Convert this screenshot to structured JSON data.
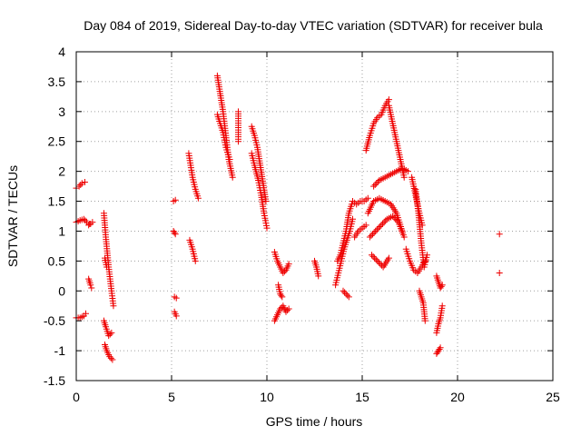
{
  "chart_data": {
    "type": "scatter",
    "title": "Day 084 of 2019, Sidereal Day-to-day VTEC variation (SDTVAR) for receiver bula",
    "xlabel": "GPS time / hours",
    "ylabel": "SDTVAR / TECUs",
    "xlim": [
      0,
      25
    ],
    "ylim": [
      -1.5,
      4
    ],
    "xticks": [
      "0",
      "5",
      "10",
      "15",
      "20",
      "25"
    ],
    "yticks": [
      "-1.5",
      "-1",
      "-0.5",
      "0",
      "0.5",
      "1",
      "1.5",
      "2",
      "2.5",
      "3",
      "3.5",
      "4"
    ],
    "grid": true,
    "marker": "+",
    "color": "#ee0000",
    "tracks": [
      {
        "x": [
          0.0,
          0.15,
          0.3,
          0.45
        ],
        "y": [
          1.72,
          1.75,
          1.8,
          1.82
        ]
      },
      {
        "x": [
          0.0,
          0.2,
          0.4,
          0.55,
          0.7
        ],
        "y": [
          1.15,
          1.18,
          1.2,
          1.15,
          1.12
        ]
      },
      {
        "x": [
          0.0,
          0.2,
          0.4,
          0.5
        ],
        "y": [
          -0.45,
          -0.45,
          -0.42,
          -0.38
        ]
      },
      {
        "x": [
          0.65,
          0.75,
          0.85
        ],
        "y": [
          1.1,
          1.12,
          1.15
        ]
      },
      {
        "x": [
          0.65,
          0.75,
          0.8
        ],
        "y": [
          0.2,
          0.1,
          0.05
        ]
      },
      {
        "x": [
          1.45,
          1.55,
          1.7,
          1.85,
          1.95
        ],
        "y": [
          1.3,
          0.9,
          0.4,
          0.0,
          -0.25
        ]
      },
      {
        "x": [
          1.45,
          1.55,
          1.7,
          1.85
        ],
        "y": [
          -0.5,
          -0.6,
          -0.75,
          -0.7
        ]
      },
      {
        "x": [
          1.5,
          1.6,
          1.75,
          1.9
        ],
        "y": [
          -0.9,
          -1.0,
          -1.1,
          -1.15
        ]
      },
      {
        "x": [
          1.5,
          1.6
        ],
        "y": [
          0.55,
          0.4
        ]
      },
      {
        "x": [
          5.1,
          5.2
        ],
        "y": [
          1.5,
          1.52
        ]
      },
      {
        "x": [
          5.1,
          5.2
        ],
        "y": [
          1.0,
          0.95
        ]
      },
      {
        "x": [
          5.15,
          5.25
        ],
        "y": [
          -0.1,
          -0.12
        ]
      },
      {
        "x": [
          5.15,
          5.25
        ],
        "y": [
          -0.35,
          -0.42
        ]
      },
      {
        "x": [
          5.9,
          6.0,
          6.1,
          6.25,
          6.4
        ],
        "y": [
          2.3,
          2.1,
          1.9,
          1.7,
          1.55
        ]
      },
      {
        "x": [
          5.95,
          6.1,
          6.25
        ],
        "y": [
          0.85,
          0.7,
          0.5
        ]
      },
      {
        "x": [
          7.4,
          7.55,
          7.7,
          7.85,
          8.0,
          8.2
        ],
        "y": [
          3.6,
          3.3,
          3.0,
          2.6,
          2.2,
          1.9
        ]
      },
      {
        "x": [
          7.4,
          7.55,
          7.7,
          7.85,
          8.05
        ],
        "y": [
          2.95,
          2.8,
          2.65,
          2.4,
          2.2
        ]
      },
      {
        "x": [
          8.5,
          8.5
        ],
        "y": [
          3.0,
          2.5
        ]
      },
      {
        "x": [
          9.2,
          9.35,
          9.5,
          9.65,
          9.8,
          9.95
        ],
        "y": [
          2.75,
          2.6,
          2.4,
          2.1,
          1.8,
          1.5
        ]
      },
      {
        "x": [
          9.2,
          9.35,
          9.55,
          9.7,
          9.85,
          10.0
        ],
        "y": [
          2.3,
          2.1,
          1.85,
          1.6,
          1.3,
          1.05
        ]
      },
      {
        "x": [
          10.4,
          10.55,
          10.7,
          10.85,
          11.0,
          11.15
        ],
        "y": [
          0.65,
          0.5,
          0.4,
          0.3,
          0.35,
          0.45
        ]
      },
      {
        "x": [
          10.4,
          10.55,
          10.7,
          10.85,
          11.0,
          11.15
        ],
        "y": [
          -0.5,
          -0.4,
          -0.3,
          -0.25,
          -0.35,
          -0.3
        ]
      },
      {
        "x": [
          10.6,
          10.7,
          10.8
        ],
        "y": [
          0.1,
          -0.05,
          -0.1
        ]
      },
      {
        "x": [
          12.5,
          12.6,
          12.7
        ],
        "y": [
          0.5,
          0.4,
          0.25
        ]
      },
      {
        "x": [
          13.6,
          13.75,
          13.9,
          14.05,
          14.2,
          14.35,
          14.5
        ],
        "y": [
          0.1,
          0.3,
          0.5,
          0.7,
          0.85,
          1.0,
          1.2
        ]
      },
      {
        "x": [
          13.7,
          13.85,
          14.0,
          14.15,
          14.3,
          14.45
        ],
        "y": [
          0.5,
          0.6,
          0.8,
          1.0,
          1.3,
          1.45
        ]
      },
      {
        "x": [
          14.0,
          14.15,
          14.3
        ],
        "y": [
          0.0,
          -0.05,
          -0.1
        ]
      },
      {
        "x": [
          14.5,
          14.7,
          14.9,
          15.1,
          15.3
        ],
        "y": [
          1.5,
          1.45,
          1.5,
          1.5,
          1.55
        ]
      },
      {
        "x": [
          14.6,
          14.8,
          15.0,
          15.2
        ],
        "y": [
          0.9,
          1.0,
          1.05,
          1.1
        ]
      },
      {
        "x": [
          15.2,
          15.4,
          15.6,
          15.8,
          16.0,
          16.2,
          16.4
        ],
        "y": [
          2.35,
          2.6,
          2.8,
          2.9,
          2.95,
          3.1,
          3.2
        ]
      },
      {
        "x": [
          16.4,
          16.6,
          16.8,
          17.0,
          17.2
        ],
        "y": [
          3.1,
          2.8,
          2.5,
          2.2,
          1.9
        ]
      },
      {
        "x": [
          15.6,
          15.9,
          16.2,
          16.5,
          16.8,
          17.1,
          17.4
        ],
        "y": [
          1.75,
          1.85,
          1.9,
          1.95,
          2.0,
          2.05,
          2.0
        ]
      },
      {
        "x": [
          15.3,
          15.6,
          15.9,
          16.2,
          16.5,
          16.8,
          17.1
        ],
        "y": [
          1.3,
          1.5,
          1.55,
          1.5,
          1.45,
          1.3,
          1.0
        ]
      },
      {
        "x": [
          15.4,
          15.7,
          16.0,
          16.3,
          16.6,
          16.9,
          17.2
        ],
        "y": [
          0.9,
          1.0,
          1.1,
          1.2,
          1.25,
          1.15,
          0.9
        ]
      },
      {
        "x": [
          15.5,
          15.8,
          16.1,
          16.4
        ],
        "y": [
          0.6,
          0.5,
          0.4,
          0.55
        ]
      },
      {
        "x": [
          17.3,
          17.5,
          17.7,
          17.9,
          18.1,
          18.3
        ],
        "y": [
          0.7,
          0.5,
          0.35,
          0.3,
          0.4,
          0.5
        ]
      },
      {
        "x": [
          17.6,
          17.8,
          18.0,
          18.15
        ],
        "y": [
          1.9,
          1.6,
          1.3,
          1.1
        ]
      },
      {
        "x": [
          17.8,
          17.95,
          18.1,
          18.25,
          18.4
        ],
        "y": [
          1.7,
          1.3,
          0.8,
          0.4,
          0.6
        ]
      },
      {
        "x": [
          18.0,
          18.1,
          18.2,
          18.3
        ],
        "y": [
          0.0,
          -0.1,
          -0.2,
          -0.5
        ]
      },
      {
        "x": [
          18.9,
          19.0,
          19.1,
          19.2
        ],
        "y": [
          0.25,
          0.15,
          0.05,
          0.1
        ]
      },
      {
        "x": [
          18.9,
          19.0,
          19.1,
          19.2
        ],
        "y": [
          -0.7,
          -0.55,
          -0.45,
          -0.25
        ]
      },
      {
        "x": [
          18.9,
          19.0,
          19.1
        ],
        "y": [
          -1.05,
          -1.0,
          -0.95
        ]
      },
      {
        "x": [
          22.2
        ],
        "y": [
          0.95
        ]
      },
      {
        "x": [
          22.2
        ],
        "y": [
          0.3
        ]
      }
    ]
  }
}
